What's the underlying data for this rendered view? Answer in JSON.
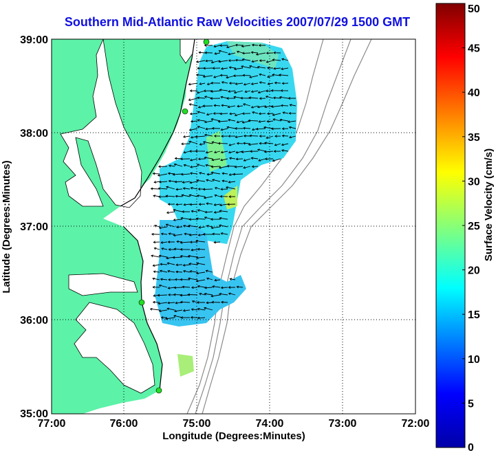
{
  "title": "Southern Mid-Atlantic Raw Velocities 2007/07/29 1500 GMT",
  "axes": {
    "xlabel": "Longitude (Degrees:Minutes)",
    "ylabel": "Latitude (Degrees:Minutes)",
    "x_ticks": [
      "77:00",
      "76:00",
      "75:00",
      "74:00",
      "73:00",
      "72:00"
    ],
    "y_ticks": [
      "39:00",
      "38:00",
      "37:00",
      "36:00",
      "35:00"
    ],
    "grid": "dotted"
  },
  "colorbar": {
    "label": "Surface Velocity (cm/s)",
    "ticks": [
      "0",
      "5",
      "10",
      "15",
      "20",
      "25",
      "30",
      "35",
      "40",
      "45",
      "50"
    ],
    "range": [
      0,
      50
    ],
    "colormap": "jet"
  },
  "colors": {
    "title": "#1010e0",
    "land": "#5cf2a8",
    "bathymetry": "#8a8a8a",
    "station_marker": "#22dd22"
  }
}
